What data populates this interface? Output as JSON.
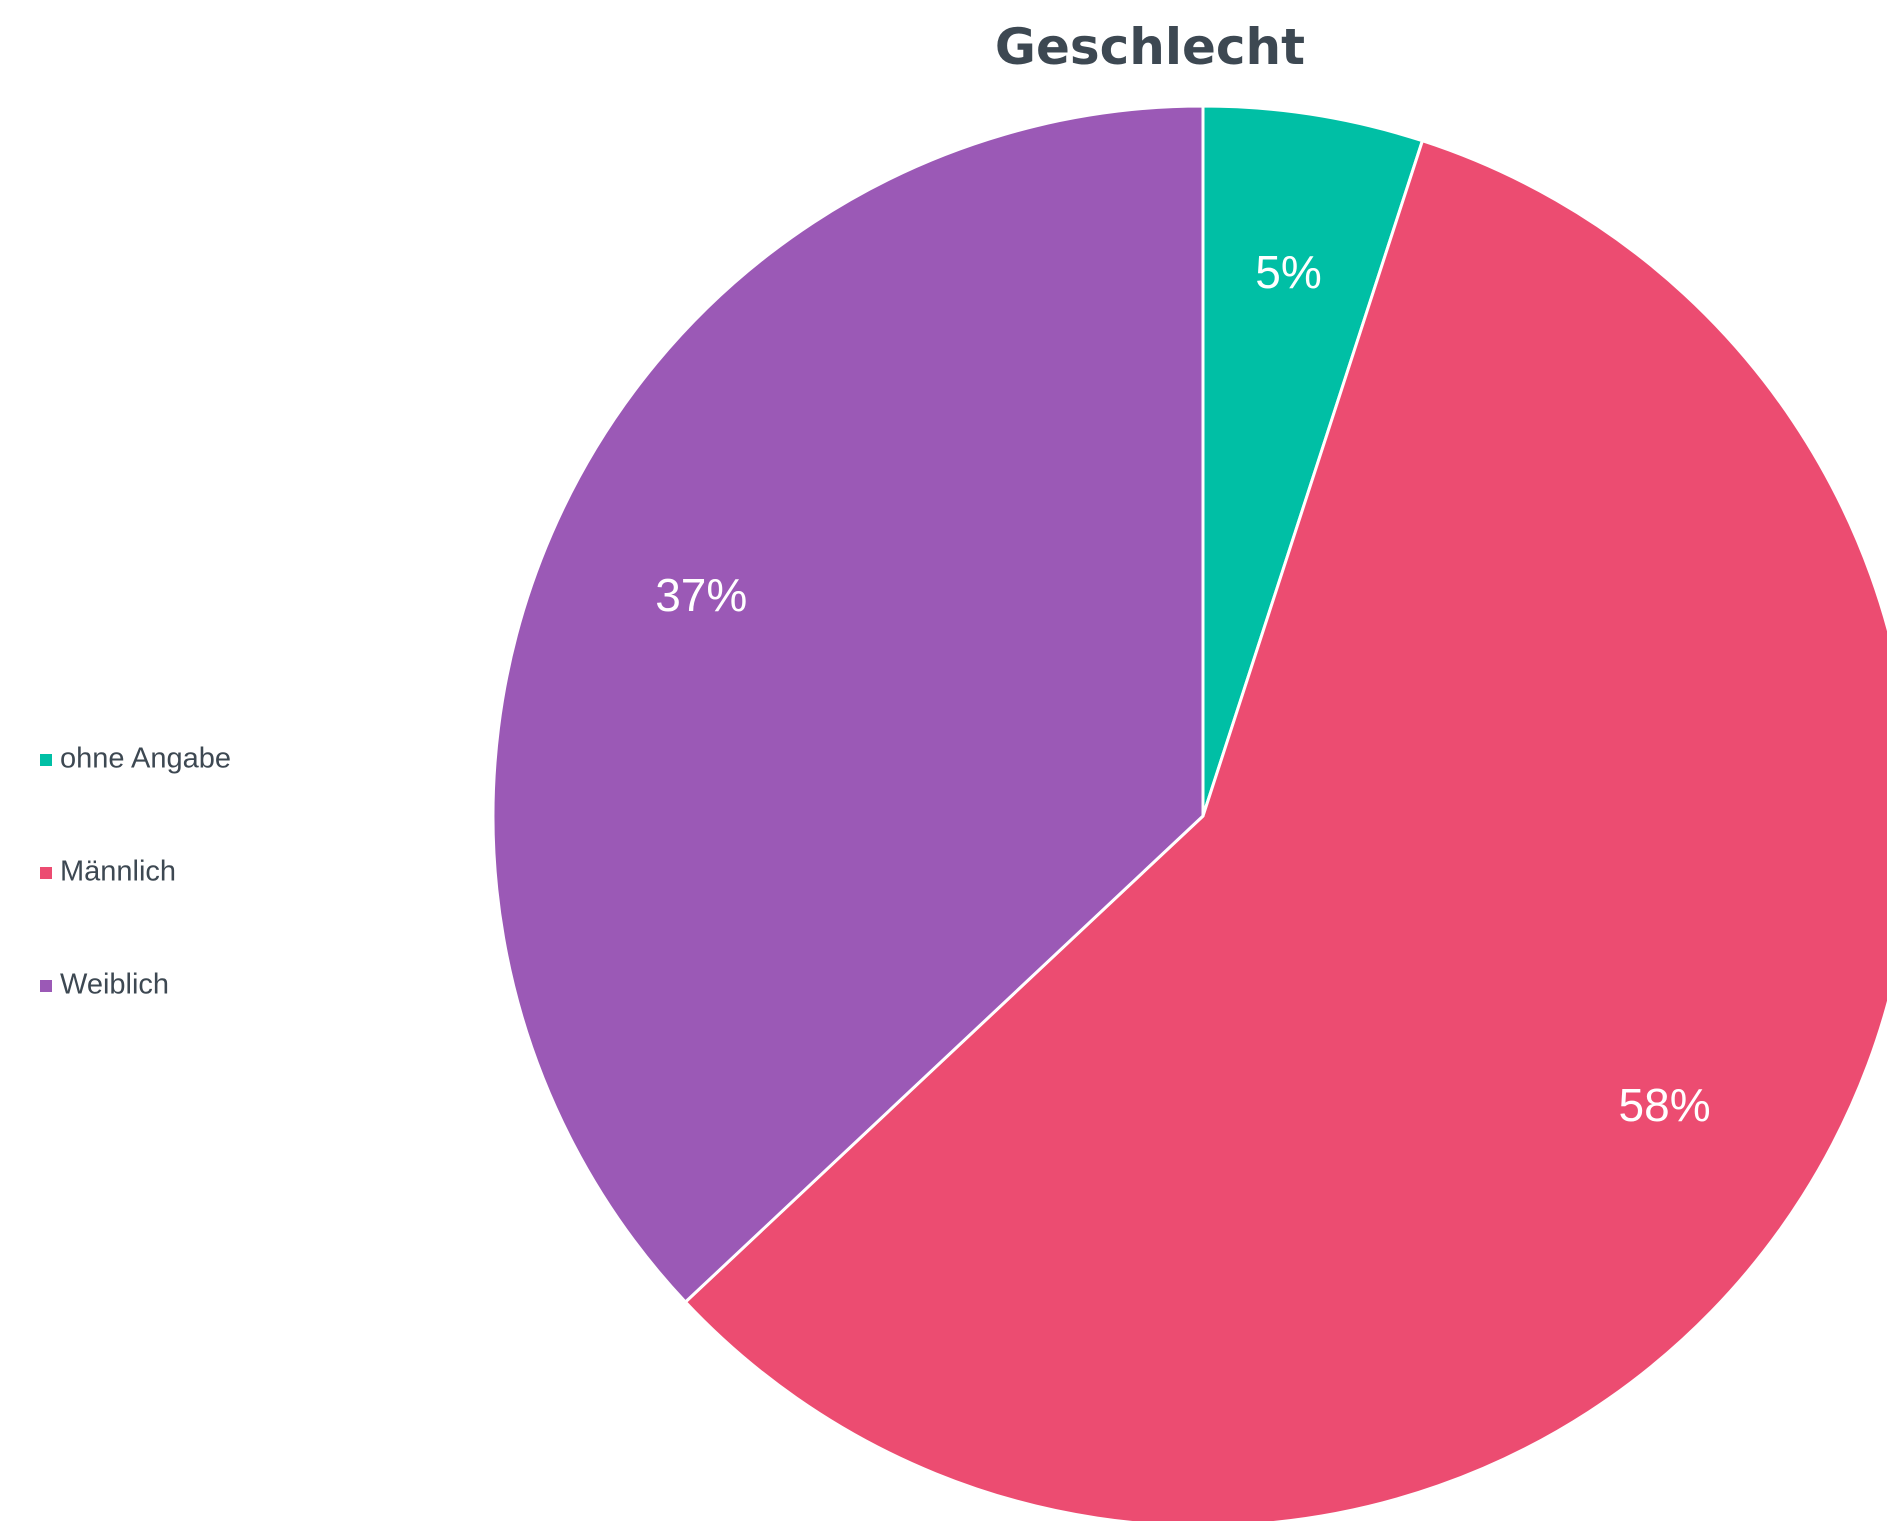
{
  "chart_data": {
    "type": "pie",
    "title": "Geschlecht",
    "categories": [
      "ohne Angabe",
      "Männlich",
      "Weiblich"
    ],
    "values": [
      5,
      58,
      37
    ],
    "value_labels": [
      "5%",
      "58%",
      "37%"
    ],
    "colors": [
      "#00bfa5",
      "#ec4c71",
      "#9b59b6"
    ],
    "start_angle": "12 o'clock",
    "direction": "clockwise",
    "slice_border_color": "#ffffff",
    "legend_placement": "left"
  }
}
